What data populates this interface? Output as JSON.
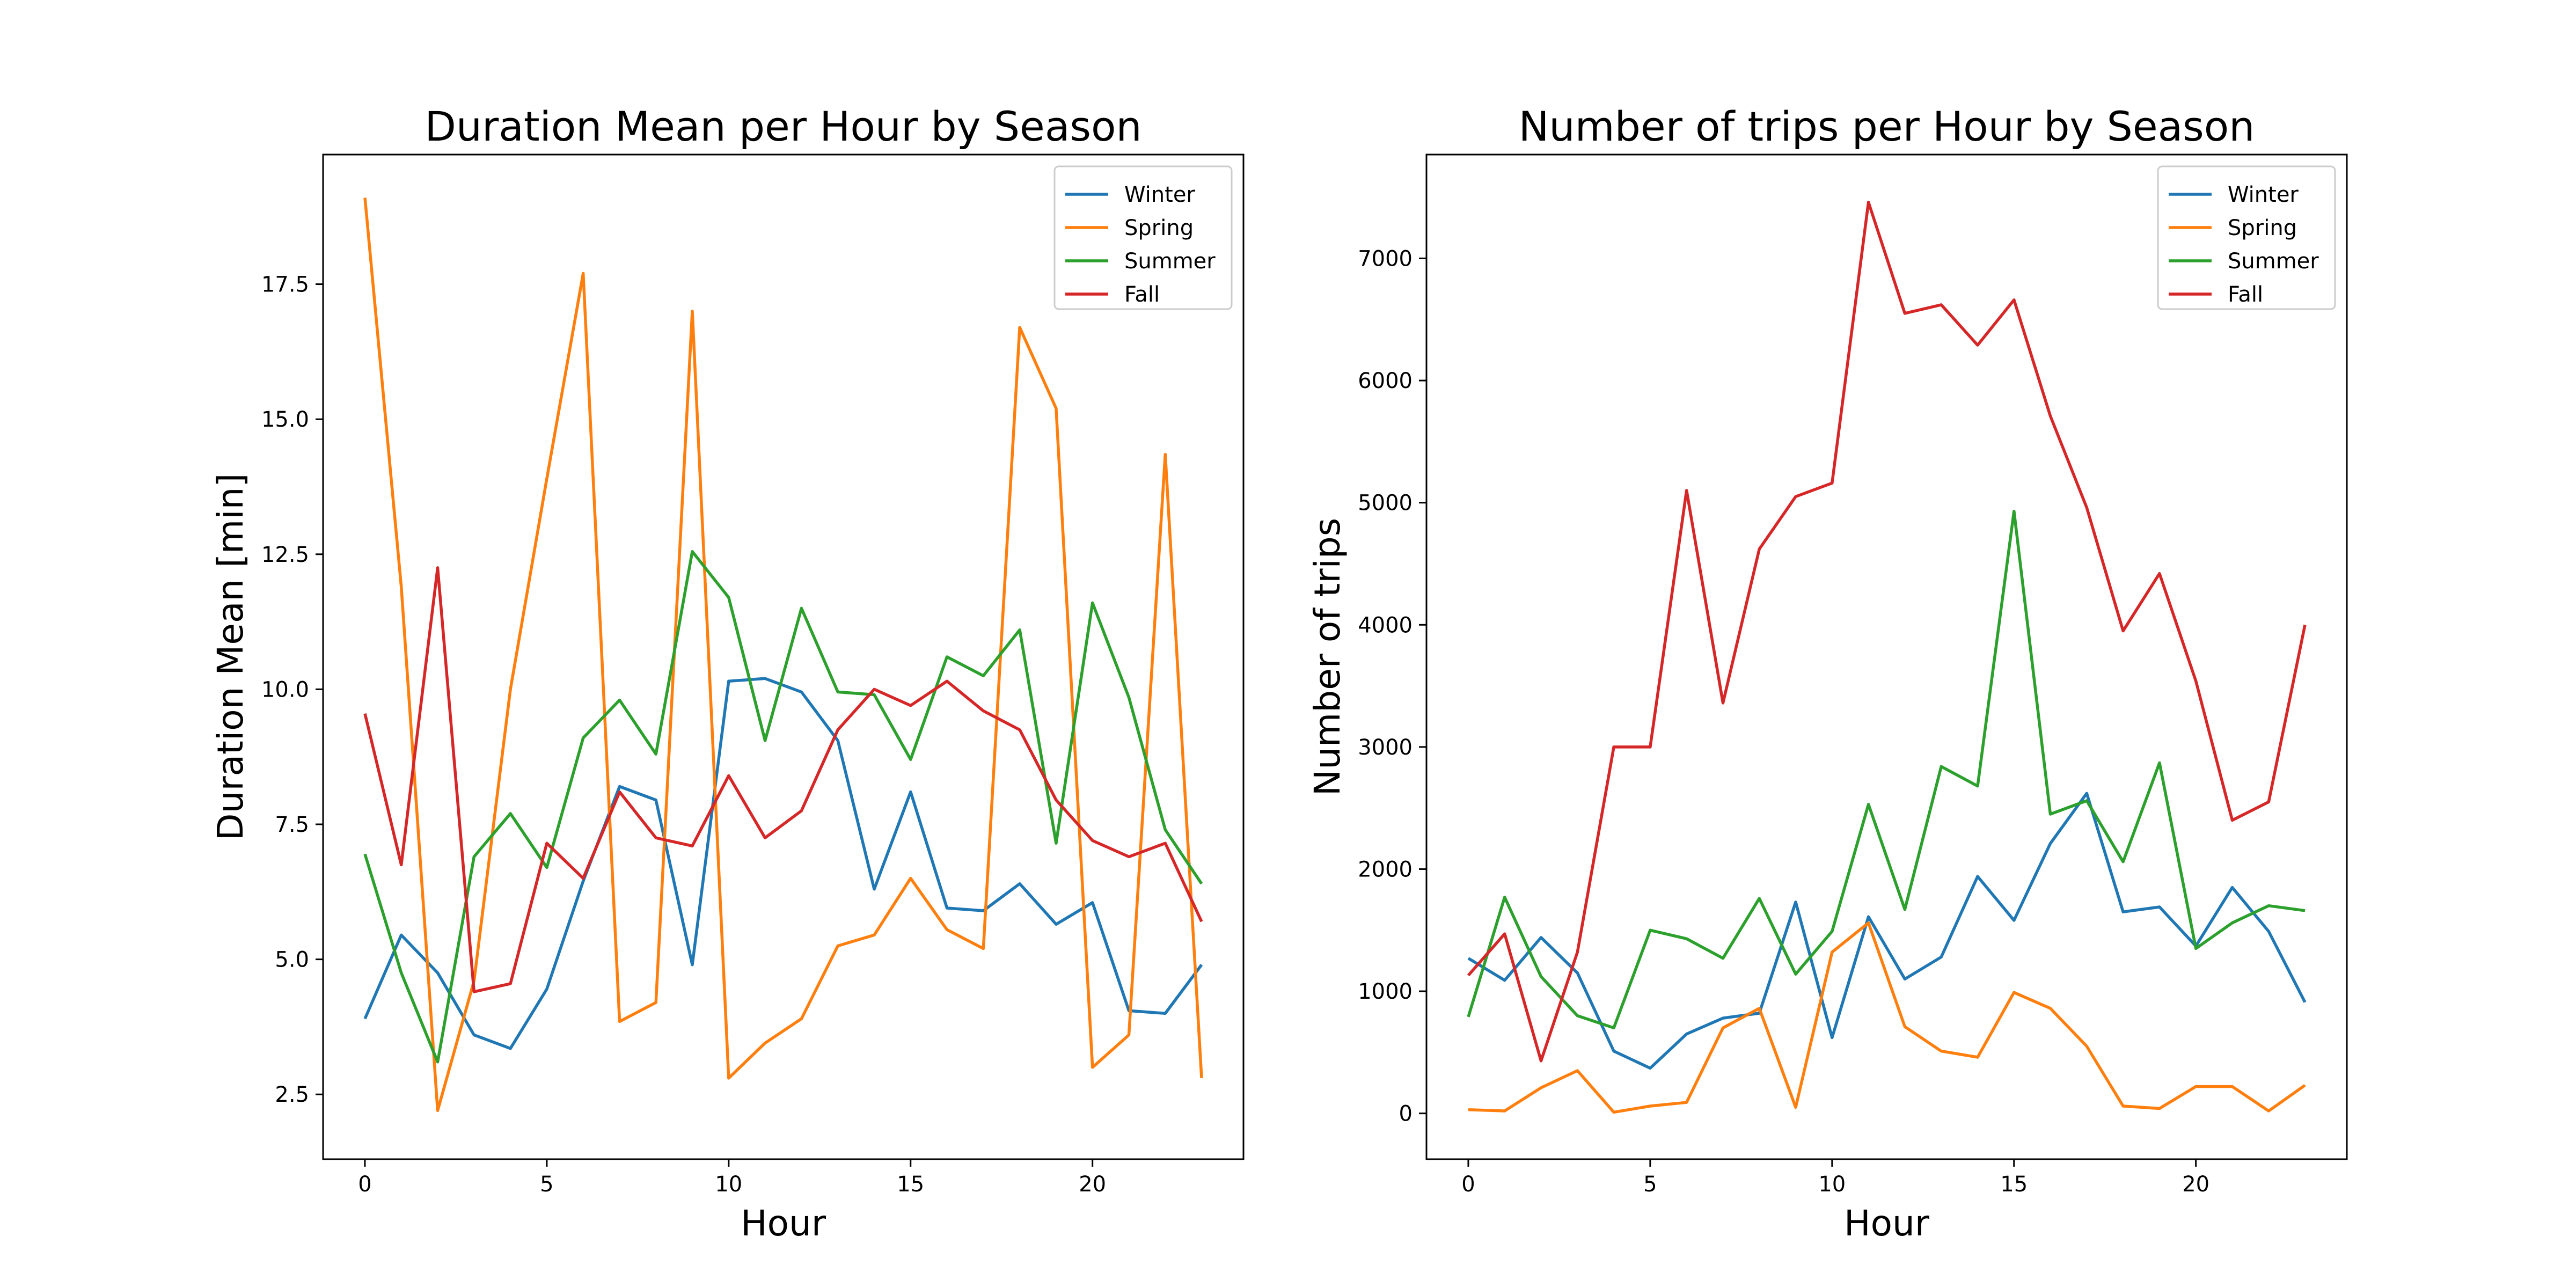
{
  "charts": [
    {
      "type": "line",
      "title": "Duration Mean per Hour by Season",
      "xlabel": "Hour",
      "ylabel": "Duration Mean [min]",
      "xlim": [
        -1.15,
        24.15
      ],
      "ylim": [
        1.3,
        19.9
      ],
      "xticks": [
        0,
        5,
        10,
        15,
        20
      ],
      "xtick_labels": [
        "0",
        "5",
        "10",
        "15",
        "20"
      ],
      "yticks": [
        2.5,
        5.0,
        7.5,
        10.0,
        12.5,
        15.0,
        17.5
      ],
      "ytick_labels": [
        "2.5",
        "5.0",
        "7.5",
        "10.0",
        "12.5",
        "15.0",
        "17.5"
      ],
      "grid": false,
      "legend_position": "top-right",
      "x": [
        0,
        1,
        2,
        3,
        4,
        5,
        6,
        7,
        8,
        9,
        10,
        11,
        12,
        13,
        14,
        15,
        16,
        17,
        18,
        19,
        20,
        21,
        22,
        23
      ],
      "series": [
        {
          "name": "Winter",
          "color": "#1f77b4",
          "values": [
            3.9,
            5.45,
            4.75,
            3.6,
            3.35,
            4.45,
            6.45,
            8.2,
            7.95,
            4.9,
            10.15,
            10.2,
            9.95,
            9.05,
            6.3,
            8.1,
            5.95,
            5.9,
            6.4,
            5.65,
            6.05,
            4.05,
            4.0,
            4.9
          ]
        },
        {
          "name": "Spring",
          "color": "#ff7f0e",
          "values": [
            19.1,
            11.9,
            2.2,
            4.6,
            10.0,
            13.9,
            17.7,
            3.85,
            4.2,
            17.0,
            2.8,
            3.45,
            3.9,
            5.25,
            5.45,
            6.5,
            5.55,
            5.2,
            16.7,
            15.2,
            3.0,
            3.6,
            14.35,
            2.8
          ]
        },
        {
          "name": "Summer",
          "color": "#2ca02c",
          "values": [
            6.95,
            4.75,
            3.1,
            6.9,
            7.7,
            6.7,
            9.1,
            9.8,
            8.8,
            12.55,
            11.7,
            9.05,
            11.5,
            9.95,
            9.9,
            8.7,
            10.6,
            10.25,
            11.1,
            7.15,
            11.6,
            9.85,
            7.4,
            6.4
          ]
        },
        {
          "name": "Fall",
          "color": "#d62728",
          "values": [
            9.55,
            6.75,
            12.25,
            4.4,
            4.55,
            7.15,
            6.5,
            8.1,
            7.25,
            7.1,
            8.4,
            7.25,
            7.75,
            9.25,
            10.0,
            9.7,
            10.15,
            9.6,
            9.25,
            7.95,
            7.2,
            6.9,
            7.15,
            5.7
          ]
        }
      ]
    },
    {
      "type": "line",
      "title": "Number of trips per Hour by Season",
      "xlabel": "Hour",
      "ylabel": "Number of trips",
      "xlim": [
        -1.15,
        24.15
      ],
      "ylim": [
        -375,
        7850
      ],
      "xticks": [
        0,
        5,
        10,
        15,
        20
      ],
      "xtick_labels": [
        "0",
        "5",
        "10",
        "15",
        "20"
      ],
      "yticks": [
        0,
        1000,
        2000,
        3000,
        4000,
        5000,
        6000,
        7000
      ],
      "ytick_labels": [
        "0",
        "1000",
        "2000",
        "3000",
        "4000",
        "5000",
        "6000",
        "7000"
      ],
      "grid": false,
      "legend_position": "top-right",
      "x": [
        0,
        1,
        2,
        3,
        4,
        5,
        6,
        7,
        8,
        9,
        10,
        11,
        12,
        13,
        14,
        15,
        16,
        17,
        18,
        19,
        20,
        21,
        22,
        23
      ],
      "series": [
        {
          "name": "Winter",
          "color": "#1f77b4",
          "values": [
            1270,
            1090,
            1440,
            1150,
            510,
            370,
            650,
            780,
            820,
            1730,
            620,
            1610,
            1100,
            1280,
            1940,
            1580,
            2210,
            2620,
            1650,
            1690,
            1370,
            1850,
            1490,
            910
          ]
        },
        {
          "name": "Spring",
          "color": "#ff7f0e",
          "values": [
            30,
            20,
            210,
            350,
            10,
            60,
            90,
            700,
            860,
            50,
            1320,
            1560,
            710,
            510,
            460,
            990,
            860,
            550,
            60,
            40,
            220,
            220,
            20,
            230
          ]
        },
        {
          "name": "Summer",
          "color": "#2ca02c",
          "values": [
            790,
            1770,
            1120,
            800,
            700,
            1500,
            1430,
            1270,
            1760,
            1140,
            1490,
            2530,
            1670,
            2840,
            2680,
            4930,
            2450,
            2560,
            2060,
            2870,
            1350,
            1560,
            1700,
            1660
          ]
        },
        {
          "name": "Fall",
          "color": "#d62728",
          "values": [
            1130,
            1470,
            430,
            1320,
            3000,
            3000,
            5100,
            3360,
            4620,
            5050,
            5160,
            7460,
            6550,
            6620,
            6290,
            6660,
            5710,
            4960,
            3950,
            4420,
            3540,
            2400,
            2550,
            4000
          ]
        }
      ]
    }
  ]
}
